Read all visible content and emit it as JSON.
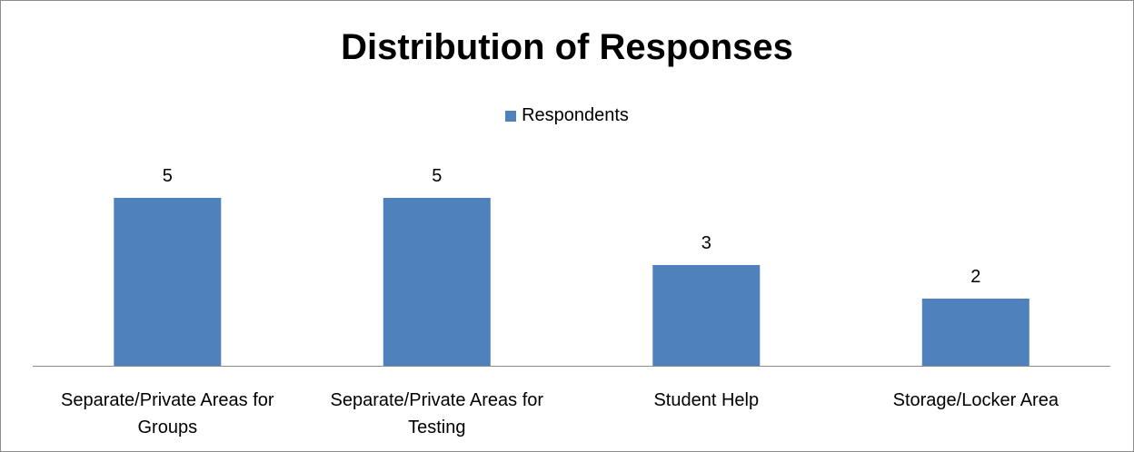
{
  "chart_data": {
    "type": "bar",
    "title": "Distribution of Responses",
    "categories": [
      [
        "Separate/Private Areas for",
        "Groups"
      ],
      [
        "Separate/Private Areas for",
        "Testing"
      ],
      [
        "Student Help"
      ],
      [
        "Storage/Locker Area"
      ]
    ],
    "series": [
      {
        "name": "Respondents",
        "values": [
          5,
          5,
          3,
          2
        ],
        "color": "#4f81bd"
      }
    ],
    "ylim": [
      0,
      7.8
    ],
    "grid": false,
    "legend": "top-center",
    "data_labels": true
  }
}
